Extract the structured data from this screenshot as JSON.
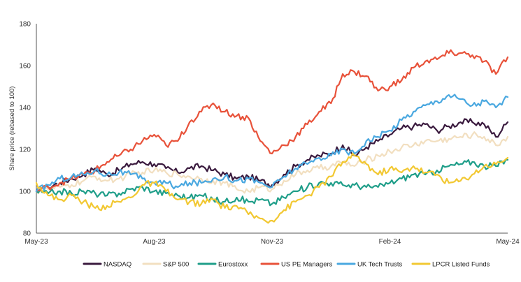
{
  "chart_data": {
    "type": "line",
    "ylabel": "Share price (rebased to 100)",
    "xlabel": "",
    "ylim": [
      80,
      180
    ],
    "yticks": [
      80,
      100,
      120,
      140,
      160,
      180
    ],
    "xlim": [
      0,
      12
    ],
    "xticks": [
      {
        "x": 0,
        "label": "May-23"
      },
      {
        "x": 3,
        "label": "Aug-23"
      },
      {
        "x": 6,
        "label": "Nov-23"
      },
      {
        "x": 9,
        "label": "Feb-24"
      },
      {
        "x": 12,
        "label": "May-24"
      }
    ],
    "grid": false,
    "legend": "bottom",
    "series": [
      {
        "name": "NASDAQ",
        "color": "#3a1a3e",
        "points": [
          [
            0,
            100
          ],
          [
            0.3,
            102
          ],
          [
            0.6,
            104
          ],
          [
            0.9,
            106
          ],
          [
            1.2,
            108
          ],
          [
            1.5,
            111
          ],
          [
            1.8,
            108
          ],
          [
            2.1,
            110
          ],
          [
            2.4,
            113
          ],
          [
            2.7,
            114
          ],
          [
            3,
            113
          ],
          [
            3.3,
            111
          ],
          [
            3.6,
            109
          ],
          [
            3.9,
            111
          ],
          [
            4.2,
            112
          ],
          [
            4.5,
            110
          ],
          [
            4.8,
            108
          ],
          [
            5.1,
            106
          ],
          [
            5.4,
            107
          ],
          [
            5.7,
            105
          ],
          [
            6,
            103
          ],
          [
            6.3,
            108
          ],
          [
            6.6,
            112
          ],
          [
            6.9,
            115
          ],
          [
            7.2,
            117
          ],
          [
            7.5,
            118
          ],
          [
            7.8,
            122
          ],
          [
            8.1,
            117
          ],
          [
            8.4,
            121
          ],
          [
            8.7,
            124
          ],
          [
            9,
            127
          ],
          [
            9.3,
            130
          ],
          [
            9.6,
            131
          ],
          [
            9.9,
            132
          ],
          [
            10.2,
            129
          ],
          [
            10.5,
            131
          ],
          [
            10.8,
            133
          ],
          [
            11.1,
            133
          ],
          [
            11.4,
            132
          ],
          [
            11.7,
            126
          ],
          [
            12,
            133
          ]
        ]
      },
      {
        "name": "S&P 500",
        "color": "#f2dfc0",
        "points": [
          [
            0,
            100
          ],
          [
            0.3,
            101
          ],
          [
            0.6,
            102
          ],
          [
            0.9,
            103
          ],
          [
            1.2,
            105
          ],
          [
            1.5,
            107
          ],
          [
            1.8,
            105
          ],
          [
            2.1,
            106
          ],
          [
            2.4,
            108
          ],
          [
            2.7,
            109
          ],
          [
            3,
            110
          ],
          [
            3.3,
            109
          ],
          [
            3.6,
            108
          ],
          [
            3.9,
            107
          ],
          [
            4.2,
            106
          ],
          [
            4.5,
            105
          ],
          [
            4.8,
            104
          ],
          [
            5.1,
            101
          ],
          [
            5.4,
            100
          ],
          [
            5.7,
            102
          ],
          [
            6,
            101
          ],
          [
            6.3,
            105
          ],
          [
            6.6,
            108
          ],
          [
            6.9,
            110
          ],
          [
            7.2,
            111
          ],
          [
            7.5,
            112
          ],
          [
            7.8,
            114
          ],
          [
            8.1,
            112
          ],
          [
            8.4,
            115
          ],
          [
            8.7,
            117
          ],
          [
            9,
            119
          ],
          [
            9.3,
            121
          ],
          [
            9.6,
            122
          ],
          [
            9.9,
            124
          ],
          [
            10.2,
            124
          ],
          [
            10.5,
            125
          ],
          [
            10.8,
            126
          ],
          [
            11.1,
            127
          ],
          [
            11.4,
            126
          ],
          [
            11.7,
            122
          ],
          [
            12,
            126
          ]
        ]
      },
      {
        "name": "Eurostoxx",
        "color": "#1f9e89",
        "points": [
          [
            0,
            100
          ],
          [
            0.3,
            99
          ],
          [
            0.6,
            100
          ],
          [
            0.9,
            99
          ],
          [
            1.2,
            100
          ],
          [
            1.5,
            99
          ],
          [
            1.8,
            98
          ],
          [
            2.1,
            99
          ],
          [
            2.4,
            101
          ],
          [
            2.7,
            102
          ],
          [
            3,
            100
          ],
          [
            3.3,
            99
          ],
          [
            3.6,
            98
          ],
          [
            3.9,
            97
          ],
          [
            4.2,
            98
          ],
          [
            4.5,
            96
          ],
          [
            4.8,
            95
          ],
          [
            5.1,
            97
          ],
          [
            5.4,
            95
          ],
          [
            5.7,
            96
          ],
          [
            6,
            94
          ],
          [
            6.3,
            97
          ],
          [
            6.6,
            100
          ],
          [
            6.9,
            102
          ],
          [
            7.2,
            104
          ],
          [
            7.5,
            104
          ],
          [
            7.8,
            103
          ],
          [
            8.1,
            103
          ],
          [
            8.4,
            102
          ],
          [
            8.7,
            102
          ],
          [
            9,
            104
          ],
          [
            9.3,
            106
          ],
          [
            9.6,
            108
          ],
          [
            9.9,
            108
          ],
          [
            10.2,
            110
          ],
          [
            10.5,
            112
          ],
          [
            10.8,
            113
          ],
          [
            11.1,
            114
          ],
          [
            11.4,
            112
          ],
          [
            11.7,
            112
          ],
          [
            12,
            115
          ]
        ]
      },
      {
        "name": "US PE Managers",
        "color": "#e8523a",
        "points": [
          [
            0,
            100
          ],
          [
            0.3,
            102
          ],
          [
            0.6,
            104
          ],
          [
            0.9,
            106
          ],
          [
            1.2,
            108
          ],
          [
            1.5,
            110
          ],
          [
            1.8,
            114
          ],
          [
            2.1,
            117
          ],
          [
            2.4,
            120
          ],
          [
            2.7,
            124
          ],
          [
            3,
            127
          ],
          [
            3.3,
            122
          ],
          [
            3.6,
            124
          ],
          [
            3.9,
            133
          ],
          [
            4.2,
            138
          ],
          [
            4.5,
            142
          ],
          [
            4.8,
            138
          ],
          [
            5.1,
            136
          ],
          [
            5.4,
            135
          ],
          [
            5.7,
            124
          ],
          [
            6,
            118
          ],
          [
            6.3,
            122
          ],
          [
            6.6,
            126
          ],
          [
            6.9,
            132
          ],
          [
            7.2,
            138
          ],
          [
            7.5,
            142
          ],
          [
            7.8,
            156
          ],
          [
            8.1,
            157
          ],
          [
            8.4,
            155
          ],
          [
            8.7,
            148
          ],
          [
            9,
            150
          ],
          [
            9.3,
            153
          ],
          [
            9.6,
            159
          ],
          [
            9.9,
            162
          ],
          [
            10.2,
            163
          ],
          [
            10.5,
            166
          ],
          [
            10.8,
            166
          ],
          [
            11.1,
            165
          ],
          [
            11.4,
            162
          ],
          [
            11.7,
            156
          ],
          [
            12,
            164
          ]
        ]
      },
      {
        "name": "UK Tech Trusts",
        "color": "#4aa8e0",
        "points": [
          [
            0,
            100
          ],
          [
            0.3,
            103
          ],
          [
            0.6,
            106
          ],
          [
            0.9,
            107
          ],
          [
            1.2,
            108
          ],
          [
            1.5,
            110
          ],
          [
            1.8,
            108
          ],
          [
            2.1,
            109
          ],
          [
            2.4,
            108
          ],
          [
            2.7,
            106
          ],
          [
            3,
            104
          ],
          [
            3.3,
            104
          ],
          [
            3.6,
            102
          ],
          [
            3.9,
            104
          ],
          [
            4.2,
            104
          ],
          [
            4.5,
            106
          ],
          [
            4.8,
            107
          ],
          [
            5.1,
            105
          ],
          [
            5.4,
            106
          ],
          [
            5.7,
            104
          ],
          [
            6,
            102
          ],
          [
            6.3,
            107
          ],
          [
            6.6,
            111
          ],
          [
            6.9,
            113
          ],
          [
            7.2,
            116
          ],
          [
            7.5,
            117
          ],
          [
            7.8,
            120
          ],
          [
            8.1,
            118
          ],
          [
            8.4,
            124
          ],
          [
            8.7,
            126
          ],
          [
            9,
            129
          ],
          [
            9.3,
            134
          ],
          [
            9.6,
            138
          ],
          [
            9.9,
            141
          ],
          [
            10.2,
            143
          ],
          [
            10.5,
            146
          ],
          [
            10.8,
            144
          ],
          [
            11.1,
            141
          ],
          [
            11.4,
            143
          ],
          [
            11.7,
            140
          ],
          [
            12,
            145
          ]
        ]
      },
      {
        "name": "LPCR Listed Funds",
        "color": "#f2c832",
        "points": [
          [
            0,
            104
          ],
          [
            0.3,
            98
          ],
          [
            0.6,
            96
          ],
          [
            0.9,
            98
          ],
          [
            1.2,
            95
          ],
          [
            1.5,
            92
          ],
          [
            1.8,
            93
          ],
          [
            2.1,
            95
          ],
          [
            2.4,
            97
          ],
          [
            2.7,
            103
          ],
          [
            3,
            104
          ],
          [
            3.3,
            100
          ],
          [
            3.6,
            96
          ],
          [
            3.9,
            95
          ],
          [
            4.2,
            94
          ],
          [
            4.5,
            96
          ],
          [
            4.8,
            92
          ],
          [
            5.1,
            93
          ],
          [
            5.4,
            89
          ],
          [
            5.7,
            87
          ],
          [
            6,
            86
          ],
          [
            6.3,
            91
          ],
          [
            6.6,
            95
          ],
          [
            6.9,
            98
          ],
          [
            7.2,
            102
          ],
          [
            7.5,
            107
          ],
          [
            7.8,
            114
          ],
          [
            8.1,
            117
          ],
          [
            8.4,
            113
          ],
          [
            8.7,
            108
          ],
          [
            9,
            111
          ],
          [
            9.3,
            109
          ],
          [
            9.6,
            112
          ],
          [
            9.9,
            109
          ],
          [
            10.2,
            108
          ],
          [
            10.5,
            104
          ],
          [
            10.8,
            105
          ],
          [
            11.1,
            108
          ],
          [
            11.4,
            112
          ],
          [
            11.7,
            113
          ],
          [
            12,
            116
          ]
        ]
      }
    ]
  }
}
